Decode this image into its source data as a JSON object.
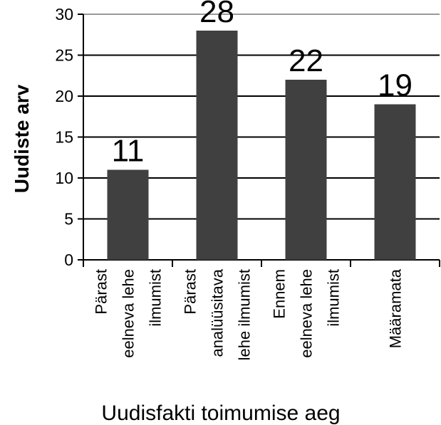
{
  "chart_data": {
    "type": "bar",
    "x_label": "Uudisfakti toimumise aeg",
    "y_label": "Uudiste arv",
    "categories": [
      "Pärast\neelneva lehe\nilmumist",
      "Pärast\nanalüüsitava\nlehe ilmumist",
      "Ennem\neelneva lehe\nilmumist",
      "Määramata"
    ],
    "values": [
      11,
      28,
      22,
      19
    ],
    "color": "#404040",
    "ylim": [
      0,
      30
    ],
    "yticks": [
      0,
      5,
      10,
      15,
      20,
      25,
      30
    ],
    "grid": true
  }
}
